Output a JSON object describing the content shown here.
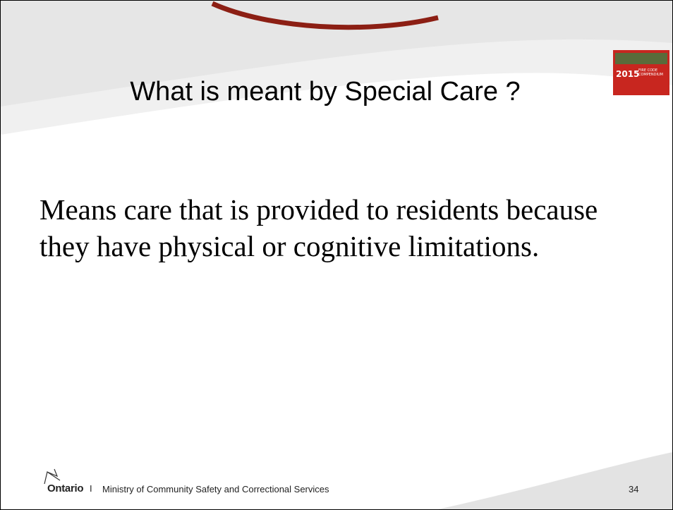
{
  "slide": {
    "title": "What is meant by Special Care ?",
    "body": [
      "Means care that is provided to residents because",
      "they have physical or cognitive limitations."
    ],
    "cover": {
      "year": "2015",
      "subtitle": "FIRE CODE COMPENDIUM"
    },
    "footer": {
      "brand": "Ontario",
      "separator": "I",
      "ministry": "Ministry of Community Safety and Correctional Services",
      "page_number": 34
    }
  }
}
